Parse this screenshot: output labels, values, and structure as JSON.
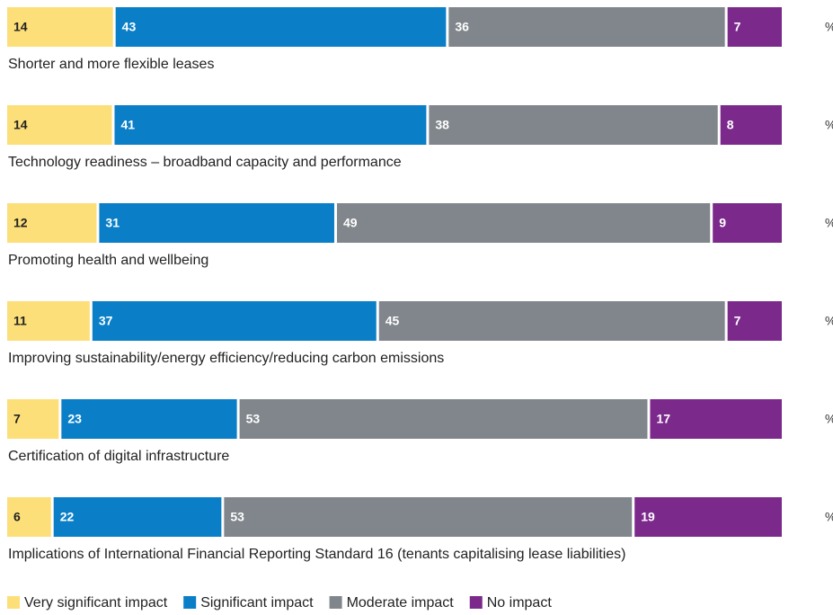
{
  "chart_data": {
    "type": "stacked-bar",
    "orientation": "horizontal",
    "unit_label": "%",
    "categories": [
      "Shorter and more flexible leases",
      "Technology readiness – broadband capacity and performance",
      "Promoting health and wellbeing",
      "Improving sustainability/energy efficiency/reducing carbon emissions",
      "Certification of digital infrastructure",
      "Implications of International Financial Reporting Standard 16 (tenants capitalising lease liabilities)"
    ],
    "series": [
      {
        "name": "Very significant impact",
        "color": "#fddf7a",
        "label_color": "#222222",
        "values": [
          14,
          14,
          12,
          11,
          7,
          6
        ]
      },
      {
        "name": "Significant impact",
        "color": "#0a7fc7",
        "label_color": "#ffffff",
        "values": [
          43,
          41,
          31,
          37,
          23,
          22
        ]
      },
      {
        "name": "Moderate impact",
        "color": "#80868b",
        "label_color": "#ffffff",
        "values": [
          36,
          38,
          49,
          45,
          53,
          53
        ]
      },
      {
        "name": "No impact",
        "color": "#7b2a8c",
        "label_color": "#ffffff",
        "values": [
          7,
          8,
          9,
          7,
          17,
          19
        ]
      }
    ],
    "legend": "bottom-left"
  }
}
